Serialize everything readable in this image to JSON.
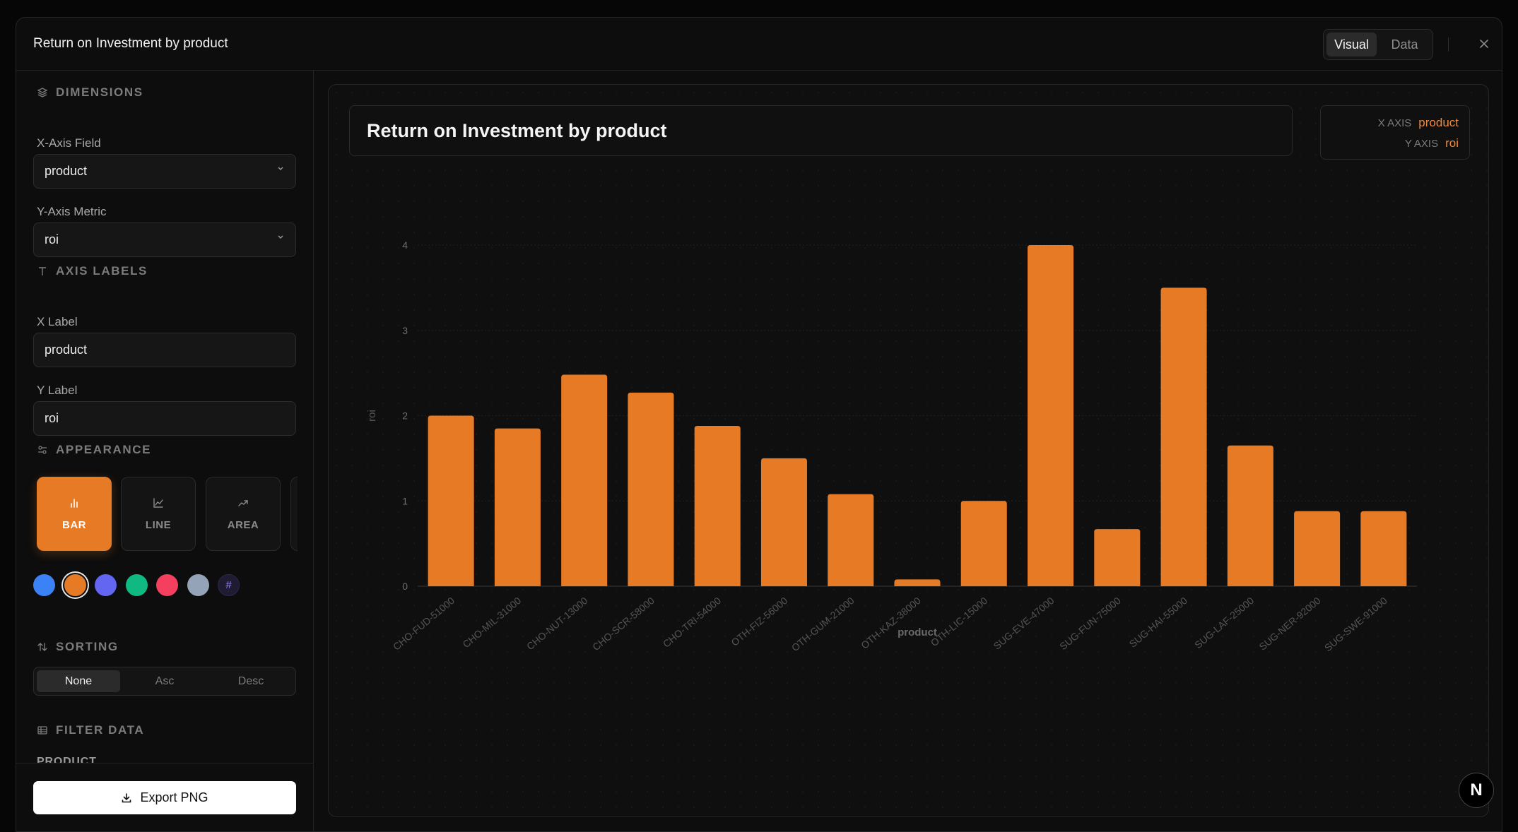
{
  "modal": {
    "title": "Return on Investment by product",
    "view_tabs": [
      "Visual",
      "Data"
    ],
    "close_icon": "close-icon"
  },
  "sidebar": {
    "dimensions": {
      "heading": "DIMENSIONS",
      "x_field_label": "X-Axis Field",
      "x_field_value": "product",
      "y_metric_label": "Y-Axis Metric",
      "y_metric_value": "roi"
    },
    "axis_labels": {
      "heading": "AXIS LABELS",
      "x_label_label": "X Label",
      "x_label_value": "product",
      "y_label_label": "Y Label",
      "y_label_value": "roi"
    },
    "appearance": {
      "heading": "APPEARANCE",
      "chart_types": [
        "BAR",
        "LINE",
        "AREA"
      ],
      "selected_type": "BAR",
      "colors": [
        "#3b82f6",
        "#e67a25",
        "#6366f1",
        "#10b981",
        "#f43f5e",
        "#94a3b8"
      ],
      "selected_color": "#e67a25",
      "custom_color_glyph": "#"
    },
    "sorting": {
      "heading": "SORTING",
      "options": [
        "None",
        "Asc",
        "Desc"
      ],
      "selected": "None"
    },
    "filter": {
      "heading": "FILTER DATA",
      "field": "PRODUCT"
    },
    "export_label": "Export PNG"
  },
  "main": {
    "chart_title": "Return on Investment by product",
    "x_axis_key": "X AXIS",
    "x_axis_value": "product",
    "y_axis_key": "Y AXIS",
    "y_axis_value": "roi"
  },
  "chart_data": {
    "type": "bar",
    "xlabel": "product",
    "ylabel": "roi",
    "ylim": [
      0,
      4
    ],
    "yticks": [
      0,
      1,
      2,
      3,
      4
    ],
    "grid": true,
    "color": "#e67a25",
    "categories": [
      "CHO-FUD-51000",
      "CHO-MIL-31000",
      "CHO-NUT-13000",
      "CHO-SCR-58000",
      "CHO-TRI-54000",
      "OTH-FIZ-56000",
      "OTH-GUM-21000",
      "OTH-KAZ-38000",
      "OTH-LIC-15000",
      "SUG-EVE-47000",
      "SUG-FUN-75000",
      "SUG-HAI-55000",
      "SUG-LAF-25000",
      "SUG-NER-92000",
      "SUG-SWE-91000"
    ],
    "values": [
      2.0,
      1.85,
      2.48,
      2.27,
      1.88,
      1.5,
      1.08,
      0.08,
      1.0,
      4.0,
      0.67,
      3.5,
      1.65,
      0.88,
      0.88
    ]
  },
  "badge": {
    "label": "N"
  }
}
